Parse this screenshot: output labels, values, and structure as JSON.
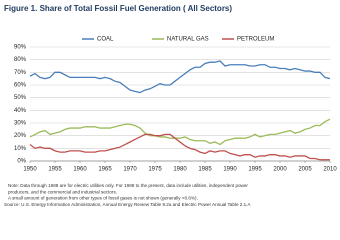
{
  "chart_data": {
    "type": "line",
    "title": "Figure 1.  Share of Total Fossil Fuel Generation ( All Sectors)",
    "x": [
      1950,
      1951,
      1952,
      1953,
      1954,
      1955,
      1956,
      1957,
      1958,
      1959,
      1960,
      1961,
      1962,
      1963,
      1964,
      1965,
      1966,
      1967,
      1968,
      1969,
      1970,
      1971,
      1972,
      1973,
      1974,
      1975,
      1976,
      1977,
      1978,
      1979,
      1980,
      1981,
      1982,
      1983,
      1984,
      1985,
      1986,
      1987,
      1988,
      1989,
      1990,
      1991,
      1992,
      1993,
      1994,
      1995,
      1996,
      1997,
      1998,
      1999,
      2000,
      2001,
      2002,
      2003,
      2004,
      2005,
      2006,
      2007,
      2008,
      2009,
      2010
    ],
    "series": [
      {
        "name": "COAL",
        "color": "#4a7ebb",
        "values": [
          67,
          69,
          66,
          65,
          66,
          70,
          70,
          68,
          66,
          66,
          66,
          66,
          66,
          66,
          65,
          66,
          65,
          63,
          62,
          59,
          56,
          55,
          54,
          56,
          57,
          59,
          61,
          60,
          60,
          63,
          66,
          69,
          72,
          74,
          74,
          77,
          78,
          78,
          79,
          75,
          76,
          76,
          76,
          76,
          75,
          75,
          76,
          76,
          74,
          74,
          73,
          73,
          72,
          73,
          72,
          71,
          71,
          70,
          70,
          66,
          65
        ]
      },
      {
        "name": "NATURAL GAS",
        "color": "#9bbb59",
        "values": [
          19,
          21,
          23,
          24,
          21,
          22,
          23,
          25,
          26,
          26,
          26,
          27,
          27,
          27,
          26,
          26,
          26,
          27,
          28,
          29,
          29,
          28,
          26,
          22,
          20,
          20,
          19,
          19,
          18,
          18,
          18,
          19,
          17,
          16,
          16,
          16,
          14,
          15,
          13,
          16,
          17,
          18,
          18,
          18,
          19,
          21,
          19,
          20,
          21,
          21,
          22,
          23,
          24,
          22,
          23,
          25,
          26,
          28,
          28,
          31,
          33
        ]
      },
      {
        "name": "PETROLEUM",
        "color": "#c0504d",
        "values": [
          13,
          10,
          11,
          10,
          10,
          8,
          7,
          7,
          8,
          8,
          8,
          7,
          7,
          7,
          8,
          8,
          9,
          10,
          11,
          13,
          15,
          17,
          19,
          21,
          21,
          20,
          20,
          21,
          21,
          18,
          15,
          12,
          10,
          9,
          7,
          6,
          8,
          7,
          8,
          8,
          6,
          5,
          4,
          5,
          5,
          3,
          4,
          4,
          5,
          5,
          4,
          4,
          3,
          4,
          4,
          4,
          2,
          2,
          1,
          1,
          1
        ]
      }
    ],
    "xlim": [
      1950,
      2010
    ],
    "xticks": [
      1950,
      1955,
      1960,
      1965,
      1970,
      1975,
      1980,
      1985,
      1990,
      1995,
      2000,
      2005,
      2010
    ],
    "ylim": [
      0,
      90
    ],
    "yticks": [
      {
        "value": 0,
        "label": "0%"
      },
      {
        "value": 10,
        "label": "10%"
      },
      {
        "value": 20,
        "label": "20%"
      },
      {
        "value": 30,
        "label": "30%"
      },
      {
        "value": 40,
        "label": "40%"
      },
      {
        "value": 50,
        "label": "50%"
      },
      {
        "value": 60,
        "label": "60%"
      },
      {
        "value": 70,
        "label": "70%"
      },
      {
        "value": 80,
        "label": "80%"
      },
      {
        "value": 90,
        "label": "90%"
      }
    ],
    "grid": true,
    "legend": "top",
    "notes": [
      "Note:  Data through 1988 are for electric utilities only.  For 1989 to the present, data include utilities, independent power",
      "producers, and the commercial and industrial sectors.",
      "A small amount of generation from other types of fossil gases is not shown (generally <0.6%).",
      "Source:  U.S. Energy Information Administration, Annual Energy Review Table 8.2a and Electric Power Annual Table 2.1.A"
    ]
  }
}
